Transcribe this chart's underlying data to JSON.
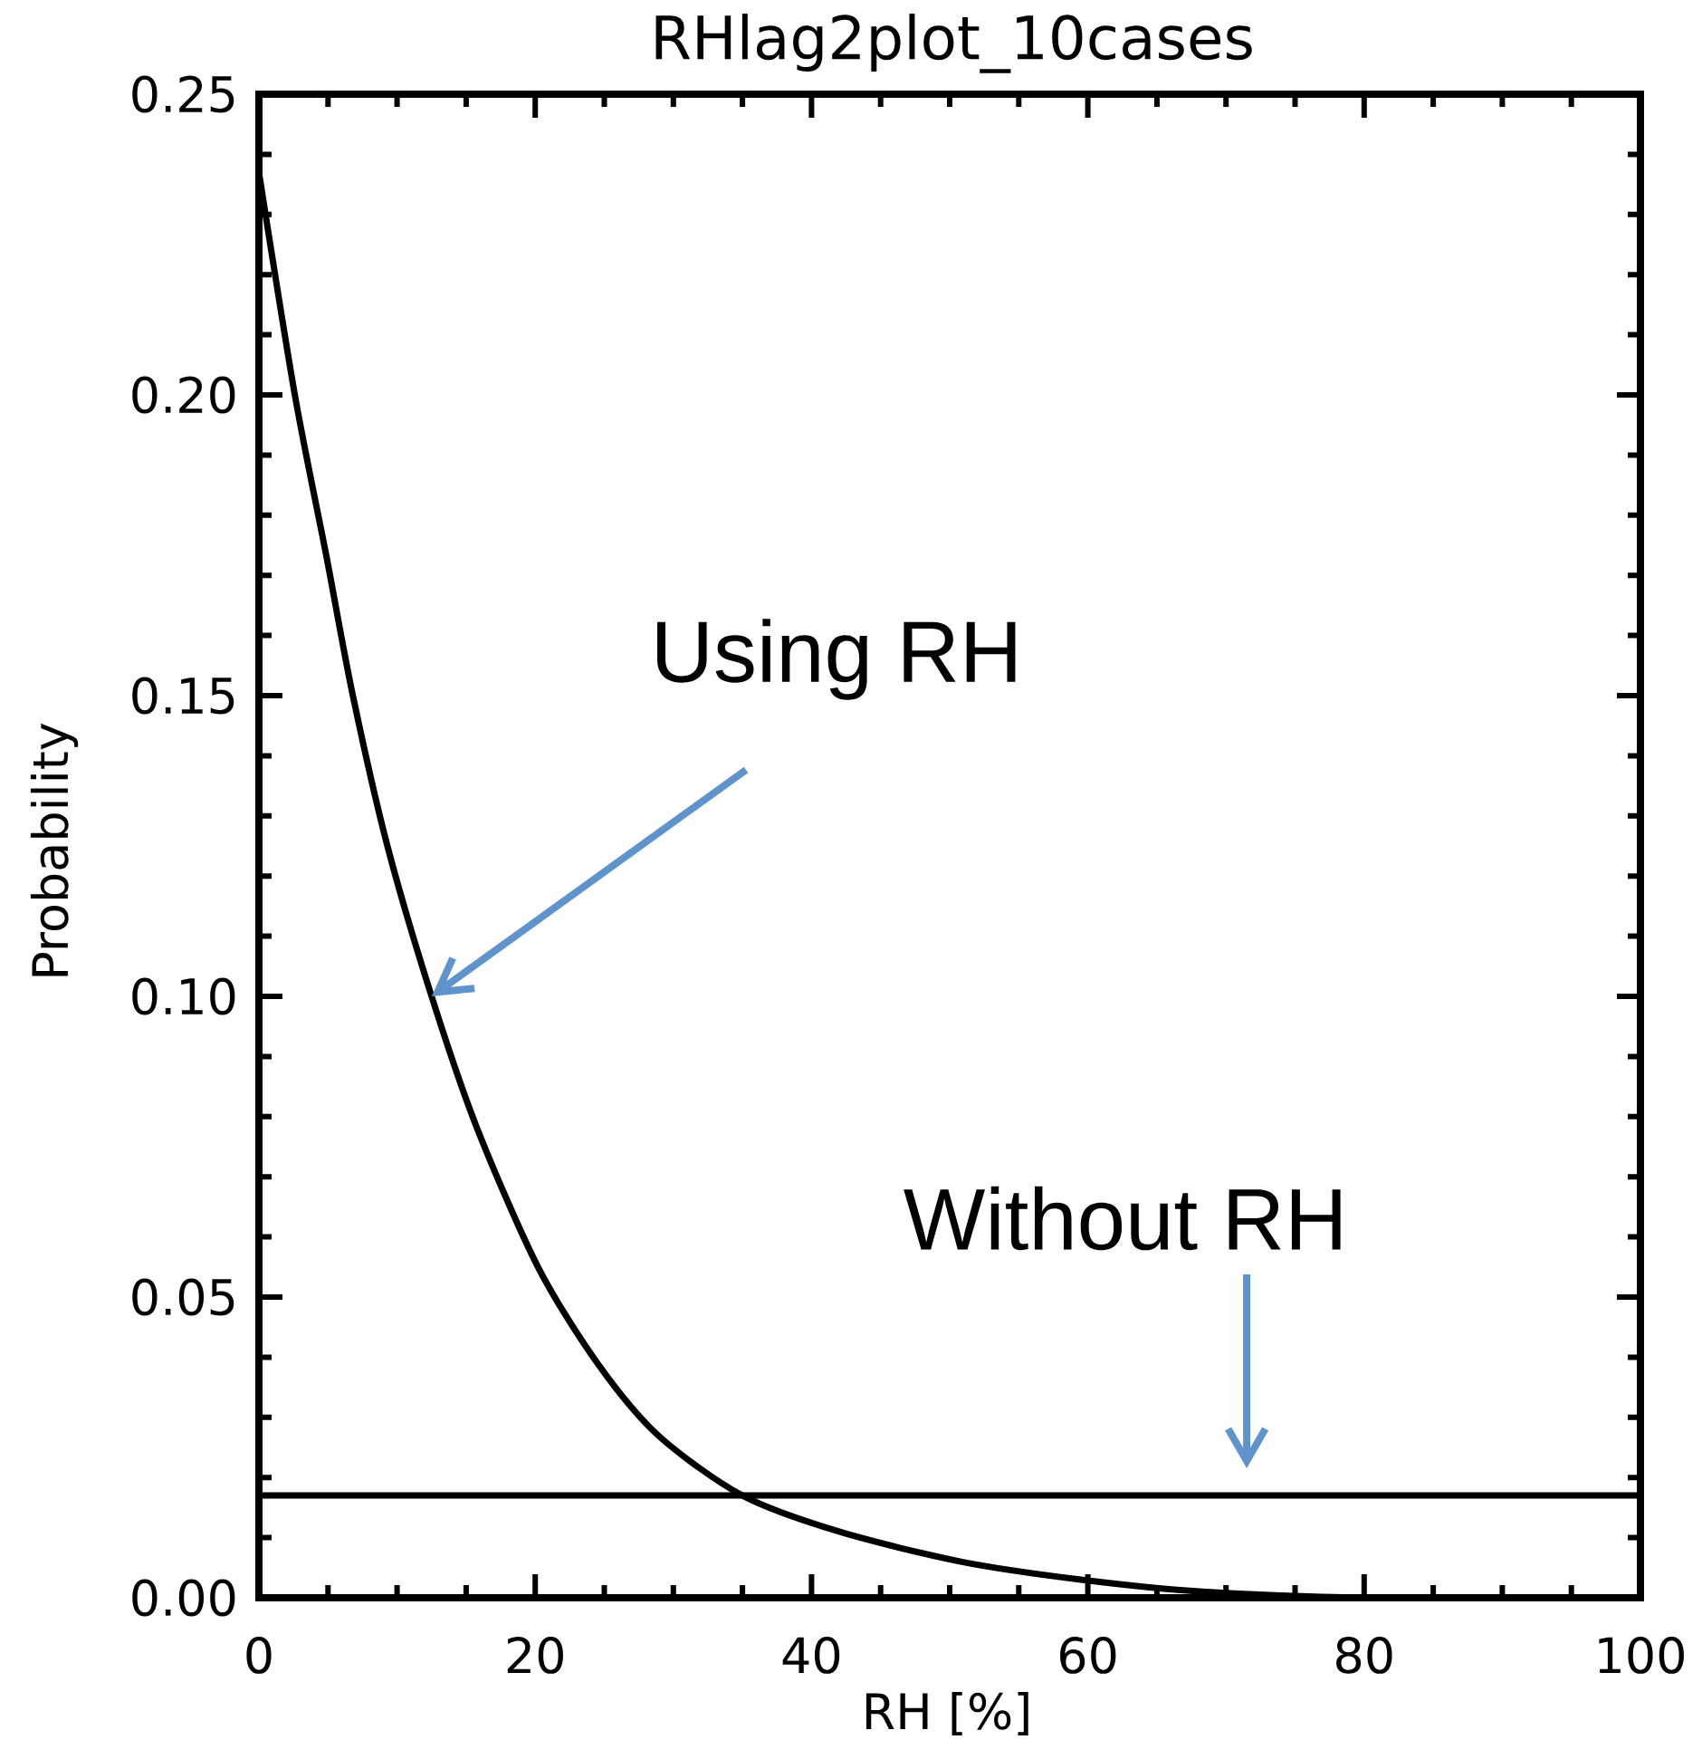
{
  "chart_data": {
    "type": "line",
    "title": "RHlag2plot_10cases",
    "xlabel": "RH [%]",
    "ylabel": "Probability",
    "xlim": [
      0,
      100
    ],
    "ylim": [
      0,
      0.25
    ],
    "xticks": [
      0,
      {
        "value": 5,
        "label": null
      },
      {
        "value": 10,
        "label": null
      },
      {
        "value": 15,
        "label": null
      },
      20,
      {
        "value": 25,
        "label": null
      },
      {
        "value": 30,
        "label": null
      },
      {
        "value": 35,
        "label": null
      },
      40,
      {
        "value": 45,
        "label": null
      },
      {
        "value": 50,
        "label": null
      },
      {
        "value": 55,
        "label": null
      },
      60,
      {
        "value": 65,
        "label": null
      },
      {
        "value": 70,
        "label": null
      },
      {
        "value": 75,
        "label": null
      },
      80,
      {
        "value": 85,
        "label": null
      },
      {
        "value": 90,
        "label": null
      },
      {
        "value": 95,
        "label": null
      },
      100
    ],
    "yticks": [
      {
        "value": 0,
        "label": "0.00"
      },
      {
        "value": 0.01,
        "label": null
      },
      {
        "value": 0.02,
        "label": null
      },
      {
        "value": 0.03,
        "label": null
      },
      {
        "value": 0.04,
        "label": null
      },
      0.05,
      {
        "value": 0.06,
        "label": null
      },
      {
        "value": 0.07,
        "label": null
      },
      {
        "value": 0.08,
        "label": null
      },
      {
        "value": 0.09,
        "label": null
      },
      {
        "value": 0.1,
        "label": "0.10"
      },
      {
        "value": 0.11,
        "label": null
      },
      {
        "value": 0.12,
        "label": null
      },
      {
        "value": 0.13,
        "label": null
      },
      {
        "value": 0.14,
        "label": null
      },
      0.15,
      {
        "value": 0.16,
        "label": null
      },
      {
        "value": 0.17,
        "label": null
      },
      {
        "value": 0.18,
        "label": null
      },
      {
        "value": 0.19,
        "label": null
      },
      {
        "value": 0.2,
        "label": "0.20"
      },
      {
        "value": 0.21,
        "label": null
      },
      {
        "value": 0.22,
        "label": null
      },
      {
        "value": 0.23,
        "label": null
      },
      {
        "value": 0.24,
        "label": null
      },
      0.25
    ],
    "series": [
      {
        "color": "#000000",
        "x": [
          0,
          2.6,
          4.9,
          6.8,
          9.3,
          12.5,
          15.8,
          20.2,
          24.5,
          28.9,
          35.0,
          42.0,
          50.8,
          59.5,
          68.3,
          80,
          100
        ],
        "values": [
          0.237,
          0.2,
          0.173,
          0.15,
          0.125,
          0.1,
          0.078,
          0.055,
          0.039,
          0.027,
          0.017,
          0.011,
          0.006,
          0.003,
          0.001,
          0.0,
          0.0
        ]
      },
      {
        "color": "#000000",
        "x": [
          0,
          100
        ],
        "values": [
          0.017,
          0.017
        ]
      }
    ],
    "annotations": [
      "Using RH",
      {
        "text": "Without RH",
        "x": 71.5,
        "y": 0.017
      }
    ]
  }
}
